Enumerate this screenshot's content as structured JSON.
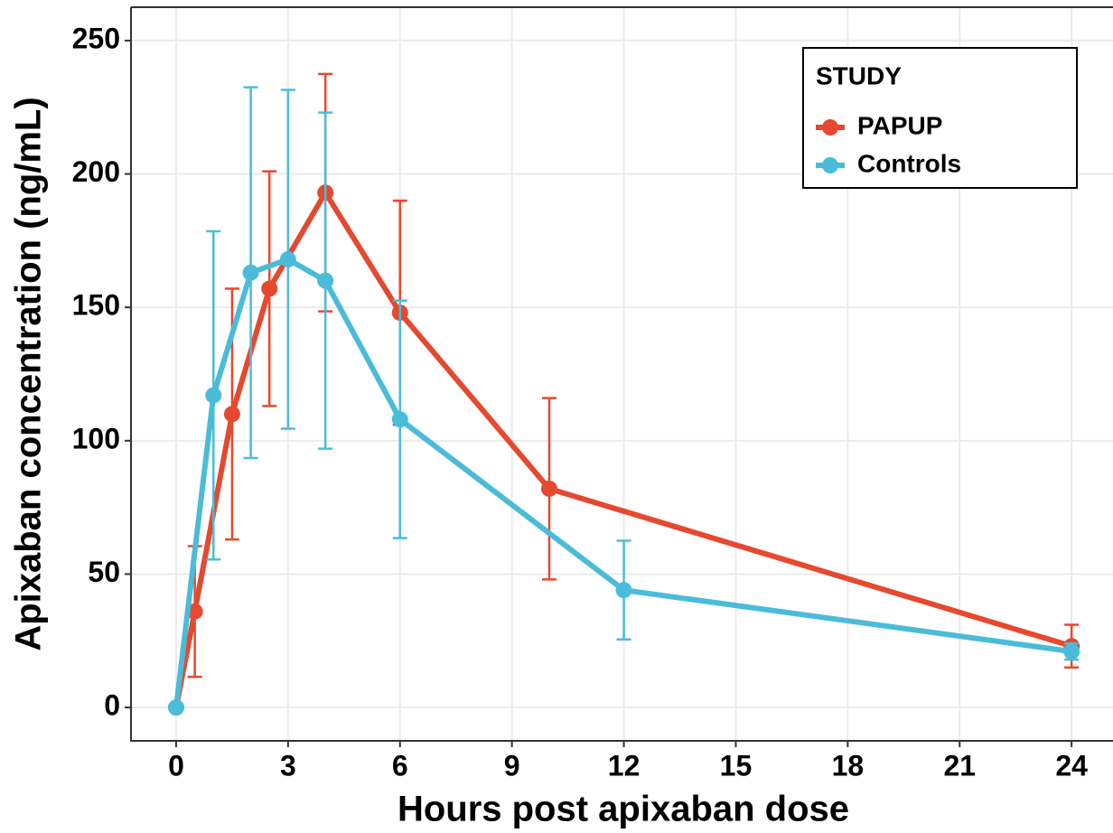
{
  "chart_data": {
    "type": "line",
    "x_label": "Hours post apixaban dose",
    "y_label": "Apixaban concentration (ng/mL)",
    "legend_title": "STUDY",
    "legend": "top-right",
    "grid": true,
    "xlim": [
      -1.21,
      25.11
    ],
    "ylim": [
      -12.5,
      262.5
    ],
    "xticks": [
      0,
      3,
      6,
      9,
      12,
      15,
      18,
      21,
      24
    ],
    "yticks": [
      0,
      50,
      100,
      150,
      200,
      250
    ],
    "series": [
      {
        "name": "PAPUP",
        "color": "#e5492f",
        "x": [
          0,
          0.5,
          1.5,
          2.5,
          4,
          6,
          10,
          24
        ],
        "values": [
          0,
          36,
          110,
          157,
          193,
          148,
          82,
          23
        ],
        "errors": [
          0,
          24.5,
          47,
          44,
          44.5,
          42,
          34,
          8
        ]
      },
      {
        "name": "Controls",
        "color": "#4bbcd8",
        "x": [
          0,
          1,
          2,
          3,
          4,
          6,
          12,
          24
        ],
        "values": [
          0,
          117,
          163,
          168,
          160,
          108,
          44,
          21
        ],
        "errors": [
          0,
          61.5,
          69.5,
          63.5,
          63,
          44.5,
          18.5,
          3
        ]
      }
    ]
  }
}
